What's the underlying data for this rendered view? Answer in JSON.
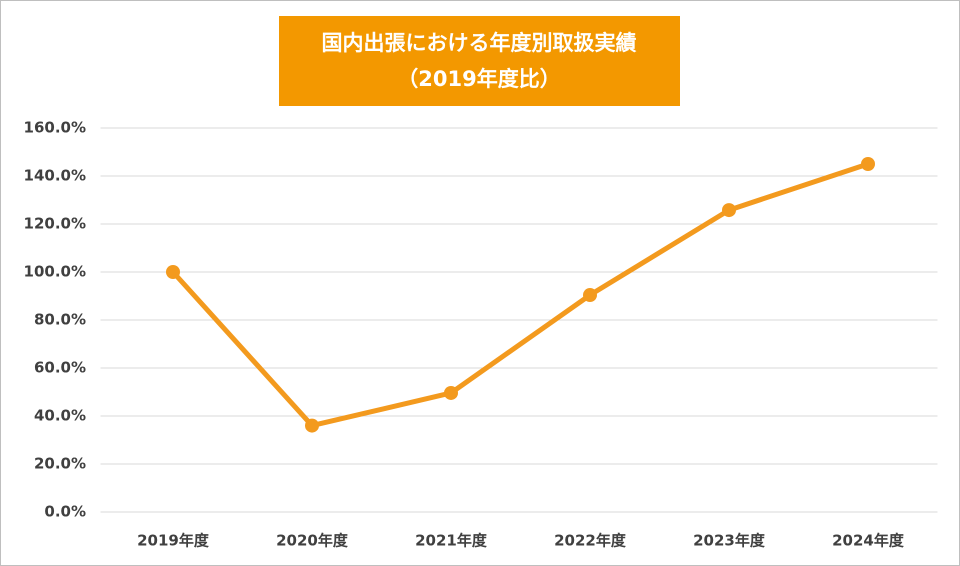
{
  "chart_data": {
    "type": "line",
    "title": "国内出張における年度別取扱実績",
    "subtitle": "（2019年度比）",
    "categories": [
      "2019年度",
      "2020年度",
      "2021年度",
      "2022年度",
      "2023年度",
      "2024年度"
    ],
    "series": [
      {
        "color": "#f39a1e",
        "values": [
          100,
          36,
          49.6,
          90.4,
          125.8,
          145
        ]
      }
    ],
    "ylim": [
      0,
      160
    ],
    "yticks": [
      {
        "value": 0,
        "label": "0.0%"
      },
      {
        "value": 20,
        "label": "20.0%"
      },
      {
        "value": 40,
        "label": "40.0%"
      },
      {
        "value": 60,
        "label": "60.0%"
      },
      {
        "value": 80,
        "label": "80.0%"
      },
      {
        "value": 100,
        "label": "100.0%"
      },
      {
        "value": 120,
        "label": "120.0%"
      },
      {
        "value": 140,
        "label": "140.0%"
      },
      {
        "value": 160,
        "label": "160.0%"
      }
    ],
    "grid": true
  }
}
